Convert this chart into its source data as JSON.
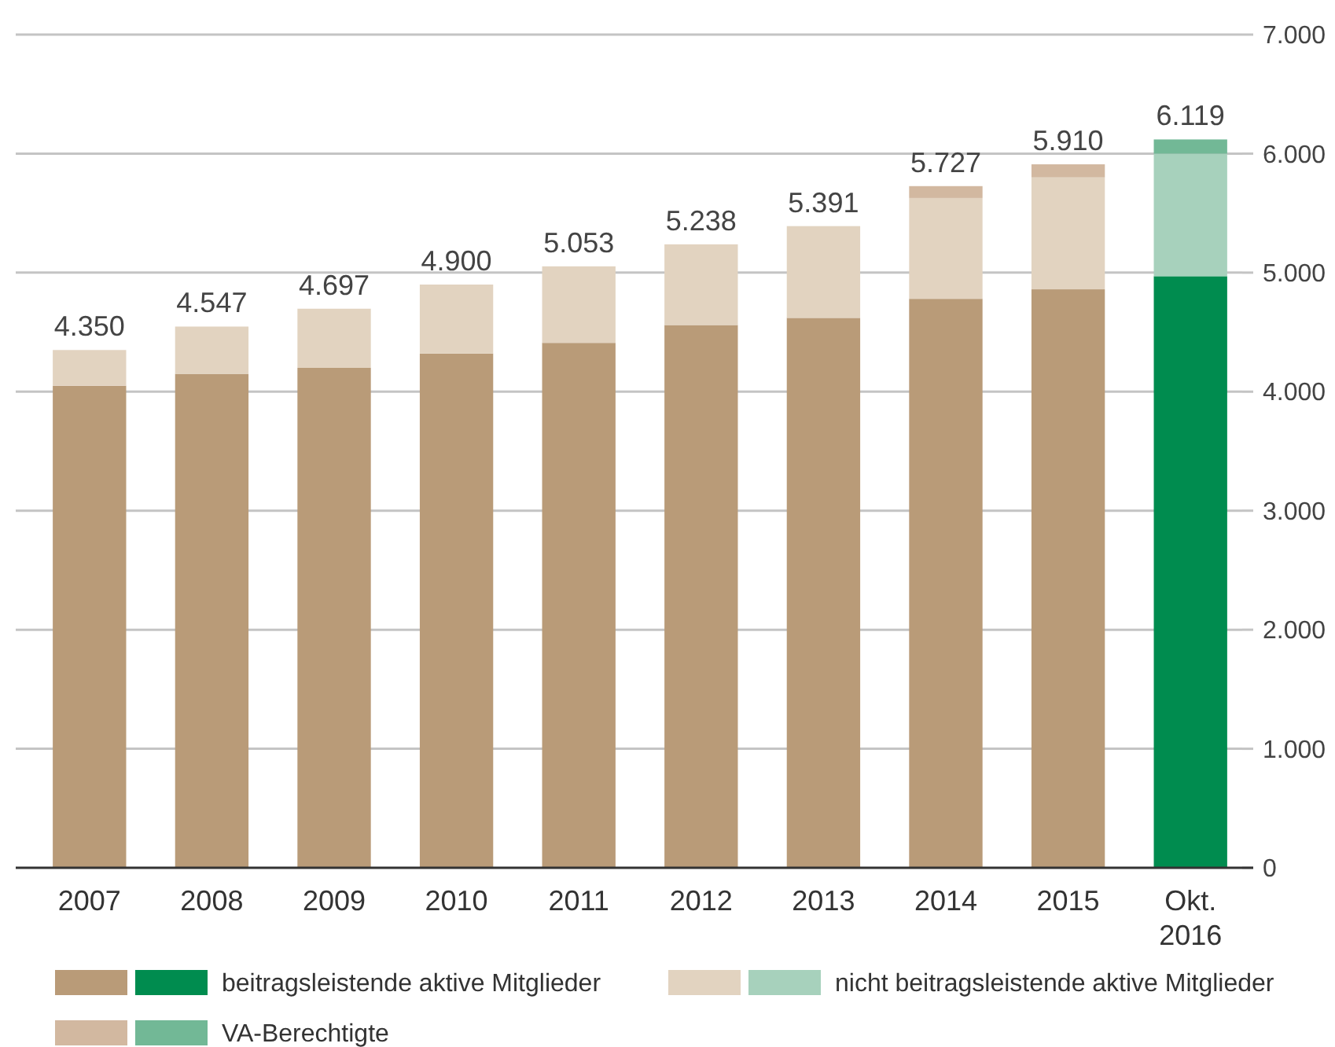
{
  "chart_data": {
    "type": "bar",
    "stacked": true,
    "categories": [
      "2007",
      "2008",
      "2009",
      "2010",
      "2011",
      "2012",
      "2013",
      "2014",
      "2015",
      "Okt. 2016"
    ],
    "series": [
      {
        "name": "beitragsleistende aktive Mitglieder",
        "color": "#b99b78",
        "colors": [
          "#b99b78",
          "#b99b78",
          "#b99b78",
          "#b99b78",
          "#b99b78",
          "#b99b78",
          "#b99b78",
          "#b99b78",
          "#b99b78",
          "#008c4f"
        ],
        "values": [
          4050,
          4150,
          4200,
          4320,
          4410,
          4560,
          4620,
          4780,
          4860,
          4970
        ]
      },
      {
        "name": "nicht beitragsleistende aktive Mitglieder",
        "color": "#e2d3c0",
        "colors": [
          "#e2d3c0",
          "#e2d3c0",
          "#e2d3c0",
          "#e2d3c0",
          "#e2d3c0",
          "#e2d3c0",
          "#e2d3c0",
          "#e2d3c0",
          "#e2d3c0",
          "#a7d1bc"
        ],
        "values": [
          300,
          397,
          497,
          580,
          643,
          678,
          771,
          847,
          940,
          1029
        ]
      },
      {
        "name": "VA-Berechtigte",
        "color": "#d2b8a0",
        "colors": [
          "#d2b8a0",
          "#d2b8a0",
          "#d2b8a0",
          "#d2b8a0",
          "#d2b8a0",
          "#d2b8a0",
          "#d2b8a0",
          "#d2b8a0",
          "#d2b8a0",
          "#72b896"
        ],
        "values": [
          0,
          0,
          0,
          0,
          0,
          0,
          0,
          100,
          110,
          120
        ]
      }
    ],
    "totals": [
      "4.350",
      "4.547",
      "4.697",
      "4.900",
      "5.053",
      "5.238",
      "5.391",
      "5.727",
      "5.910",
      "6.119"
    ],
    "ylim": [
      0,
      7000
    ],
    "yticks": [
      {
        "value": 0,
        "label": "0"
      },
      {
        "value": 1000,
        "label": "1.000"
      },
      {
        "value": 2000,
        "label": "2.000"
      },
      {
        "value": 3000,
        "label": "3.000"
      },
      {
        "value": 4000,
        "label": "4.000"
      },
      {
        "value": 5000,
        "label": "5.000"
      },
      {
        "value": 6000,
        "label": "6.000"
      },
      {
        "value": 7000,
        "label": "7.000"
      }
    ],
    "grid": "y",
    "legend": "bottom"
  }
}
